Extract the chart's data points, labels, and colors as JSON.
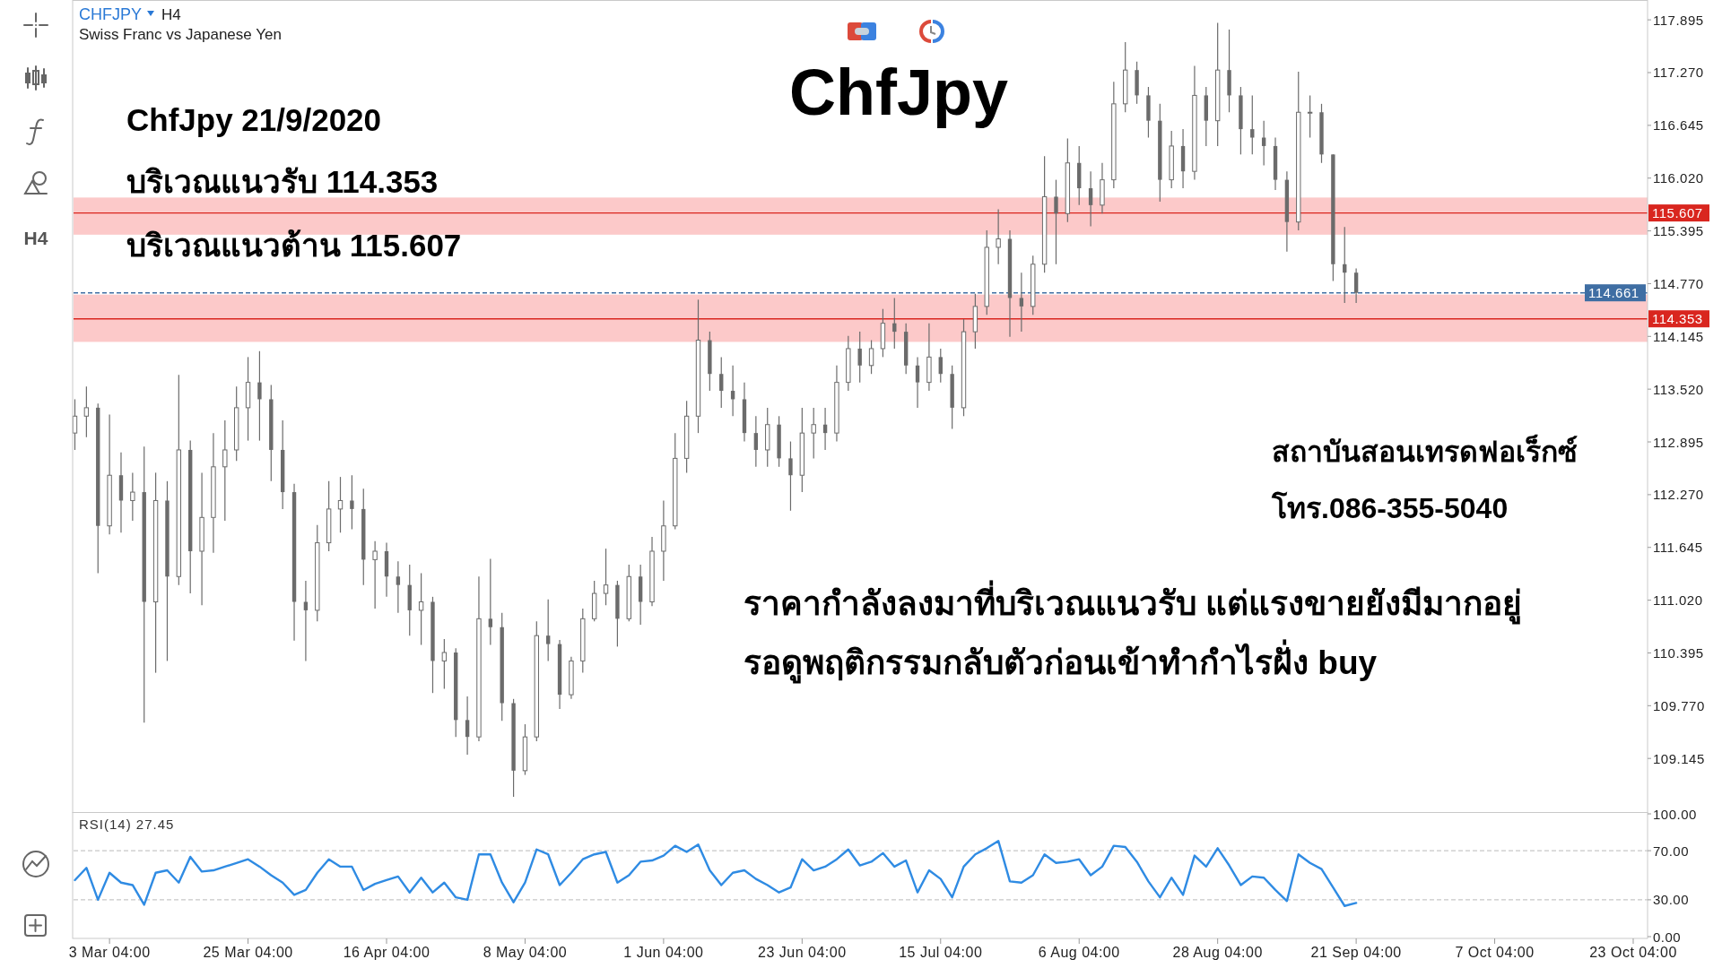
{
  "chart_data": [
    {
      "type": "candlestick",
      "title": "ChfJpy",
      "subtitle": "Swiss Franc vs Japanese Yen",
      "annotations": [
        "CHFJPY",
        "H4",
        "ChfJpy 21/9/2020",
        "บริเวณแนวรับ 114.353",
        "บริเวณแนวต้าน 115.607",
        "สถาบันสอนเทรดฟอเร็กซ์",
        "โทร.086-355-5040",
        "ราคากำลังลงมาที่บริเวณแนวรับ แต่แรงขายยังมีมากอยู่",
        "รอดูพฤติกรรมกลับตัวก่อนเข้าทำกำไรฝั่ง buy",
        "H4"
      ],
      "categories": [
        null,
        null,
        null,
        null,
        null,
        null,
        null,
        null,
        null,
        null,
        null,
        null,
        null,
        null,
        null,
        null,
        null,
        null,
        null,
        null,
        null,
        null,
        null,
        null,
        null,
        null,
        null,
        null,
        null,
        null,
        null,
        null,
        null,
        null,
        null,
        null,
        null,
        null,
        null,
        null,
        null,
        null,
        null,
        null,
        null,
        null,
        null,
        null,
        null,
        null,
        null,
        null,
        null,
        null,
        null,
        null,
        null,
        null,
        null,
        null,
        null,
        null,
        null,
        null,
        null,
        null,
        null,
        null,
        null,
        null,
        null,
        null,
        null,
        null,
        null,
        null,
        null,
        null,
        null,
        null,
        null,
        null,
        null,
        null,
        null,
        null,
        null,
        null,
        null,
        null,
        null,
        null,
        null,
        null,
        null,
        null,
        null,
        null,
        null,
        null,
        null,
        null,
        null,
        null,
        null,
        null,
        null,
        null,
        null,
        null,
        null,
        null,
        null,
        null,
        null,
        null,
        null,
        null,
        null,
        null,
        null,
        null,
        null,
        null,
        null,
        null,
        null,
        null,
        null,
        null,
        null,
        null,
        null,
        null,
        null,
        null
      ],
      "ohlc": [
        [
          113.0,
          113.4,
          112.8,
          113.2
        ],
        [
          113.2,
          113.55,
          112.95,
          113.3
        ],
        [
          113.3,
          113.35,
          111.34,
          111.9
        ],
        [
          111.9,
          113.22,
          111.8,
          112.5
        ],
        [
          112.5,
          112.77,
          111.82,
          112.2
        ],
        [
          112.2,
          112.53,
          111.96,
          112.3
        ],
        [
          112.3,
          112.84,
          109.57,
          111.0
        ],
        [
          111.0,
          112.53,
          110.16,
          112.2
        ],
        [
          112.2,
          112.43,
          110.3,
          111.3
        ],
        [
          111.3,
          113.69,
          111.2,
          112.8
        ],
        [
          112.8,
          112.91,
          111.1,
          111.6
        ],
        [
          111.6,
          112.53,
          110.96,
          112.0
        ],
        [
          112.0,
          113.0,
          111.58,
          112.6
        ],
        [
          112.6,
          113.15,
          111.96,
          112.8
        ],
        [
          112.8,
          113.55,
          112.67,
          113.3
        ],
        [
          113.3,
          113.9,
          112.91,
          113.6
        ],
        [
          113.6,
          113.97,
          112.91,
          113.4
        ],
        [
          113.4,
          113.57,
          112.43,
          112.8
        ],
        [
          112.8,
          113.15,
          112.1,
          112.3
        ],
        [
          112.3,
          112.4,
          110.54,
          111.0
        ],
        [
          111.0,
          111.25,
          110.3,
          110.9
        ],
        [
          110.9,
          111.91,
          110.77,
          111.7
        ],
        [
          111.7,
          112.43,
          111.6,
          112.1
        ],
        [
          112.1,
          112.48,
          111.82,
          112.2
        ],
        [
          112.2,
          112.5,
          111.86,
          112.1
        ],
        [
          112.1,
          112.34,
          111.2,
          111.5
        ],
        [
          111.5,
          111.72,
          110.92,
          111.6
        ],
        [
          111.6,
          111.7,
          111.06,
          111.3
        ],
        [
          111.3,
          111.48,
          110.87,
          111.2
        ],
        [
          111.2,
          111.44,
          110.6,
          110.9
        ],
        [
          110.9,
          111.34,
          110.49,
          111.0
        ],
        [
          111.0,
          111.06,
          109.92,
          110.3
        ],
        [
          110.3,
          110.56,
          109.97,
          110.4
        ],
        [
          110.4,
          110.45,
          109.4,
          109.6
        ],
        [
          109.6,
          109.88,
          109.19,
          109.4
        ],
        [
          109.4,
          111.3,
          109.35,
          110.8
        ],
        [
          110.8,
          111.51,
          110.49,
          110.7
        ],
        [
          110.7,
          110.87,
          109.59,
          109.8
        ],
        [
          109.8,
          109.85,
          108.69,
          109.0
        ],
        [
          109.0,
          109.55,
          108.95,
          109.4
        ],
        [
          109.4,
          110.77,
          109.35,
          110.6
        ],
        [
          110.6,
          111.03,
          110.3,
          110.5
        ],
        [
          110.5,
          110.55,
          109.73,
          109.9
        ],
        [
          109.9,
          110.35,
          109.85,
          110.3
        ],
        [
          110.3,
          110.92,
          110.16,
          110.8
        ],
        [
          110.8,
          111.25,
          110.77,
          111.1
        ],
        [
          111.1,
          111.63,
          110.96,
          111.2
        ],
        [
          111.2,
          111.25,
          110.47,
          110.8
        ],
        [
          110.8,
          111.44,
          110.77,
          111.3
        ],
        [
          111.3,
          111.44,
          110.73,
          111.0
        ],
        [
          111.0,
          111.77,
          110.95,
          111.6
        ],
        [
          111.6,
          112.2,
          111.25,
          111.9
        ],
        [
          111.9,
          113.0,
          111.86,
          112.7
        ],
        [
          112.7,
          113.38,
          112.53,
          113.2
        ],
        [
          113.2,
          114.58,
          113.0,
          114.1
        ],
        [
          114.1,
          114.2,
          113.5,
          113.7
        ],
        [
          113.7,
          113.9,
          113.3,
          113.5
        ],
        [
          113.5,
          113.8,
          113.2,
          113.4
        ],
        [
          113.4,
          113.6,
          112.9,
          113.0
        ],
        [
          113.0,
          113.2,
          112.6,
          112.8
        ],
        [
          112.8,
          113.3,
          112.6,
          113.1
        ],
        [
          113.1,
          113.2,
          112.6,
          112.7
        ],
        [
          112.7,
          112.9,
          112.08,
          112.5
        ],
        [
          112.5,
          113.3,
          112.3,
          113.0
        ],
        [
          113.0,
          113.3,
          112.7,
          113.1
        ],
        [
          113.1,
          113.3,
          112.8,
          113.0
        ],
        [
          113.0,
          113.8,
          112.9,
          113.6
        ],
        [
          113.6,
          114.15,
          113.5,
          114.0
        ],
        [
          114.0,
          114.2,
          113.6,
          113.8
        ],
        [
          113.8,
          114.1,
          113.7,
          114.0
        ],
        [
          114.0,
          114.47,
          113.9,
          114.3
        ],
        [
          114.3,
          114.6,
          114.0,
          114.2
        ],
        [
          114.2,
          114.3,
          113.7,
          113.8
        ],
        [
          113.8,
          113.9,
          113.3,
          113.6
        ],
        [
          113.6,
          114.3,
          113.5,
          113.9
        ],
        [
          113.9,
          114.0,
          113.6,
          113.7
        ],
        [
          113.7,
          113.8,
          113.05,
          113.3
        ],
        [
          113.3,
          114.35,
          113.2,
          114.2
        ],
        [
          114.2,
          114.65,
          114.0,
          114.5
        ],
        [
          114.5,
          115.4,
          114.4,
          115.2
        ],
        [
          115.2,
          115.65,
          115.0,
          115.3
        ],
        [
          115.3,
          115.4,
          114.14,
          114.6
        ],
        [
          114.6,
          114.9,
          114.2,
          114.5
        ],
        [
          114.5,
          115.1,
          114.4,
          115.0
        ],
        [
          115.0,
          116.28,
          114.9,
          115.8
        ],
        [
          115.8,
          116.0,
          115.0,
          115.6
        ],
        [
          115.6,
          116.49,
          115.5,
          116.2
        ],
        [
          116.2,
          116.4,
          115.7,
          115.9
        ],
        [
          115.9,
          116.1,
          115.45,
          115.7
        ],
        [
          115.7,
          116.2,
          115.6,
          116.0
        ],
        [
          116.0,
          117.16,
          115.9,
          116.9
        ],
        [
          116.9,
          117.63,
          116.8,
          117.3
        ],
        [
          117.3,
          117.4,
          116.9,
          117.0
        ],
        [
          117.0,
          117.1,
          116.5,
          116.7
        ],
        [
          116.7,
          116.9,
          115.74,
          116.0
        ],
        [
          116.0,
          116.58,
          115.9,
          116.4
        ],
        [
          116.4,
          116.6,
          115.9,
          116.1
        ],
        [
          116.1,
          117.35,
          116.0,
          117.0
        ],
        [
          117.0,
          117.1,
          116.4,
          116.7
        ],
        [
          116.7,
          117.86,
          116.4,
          117.3
        ],
        [
          117.3,
          117.78,
          116.8,
          117.0
        ],
        [
          117.0,
          117.1,
          116.3,
          116.6
        ],
        [
          116.6,
          117.0,
          116.3,
          116.5
        ],
        [
          116.5,
          116.7,
          116.17,
          116.4
        ],
        [
          116.4,
          116.5,
          115.88,
          116.0
        ],
        [
          116.0,
          116.1,
          115.15,
          115.5
        ],
        [
          115.5,
          117.28,
          115.4,
          116.8
        ],
        [
          116.8,
          117.0,
          116.5,
          116.8
        ],
        [
          116.8,
          116.9,
          116.2,
          116.3
        ],
        [
          116.3,
          116.3,
          114.8,
          115.0
        ],
        [
          115.0,
          115.44,
          114.54,
          114.9
        ],
        [
          114.9,
          114.95,
          114.54,
          114.661
        ],
        null,
        null,
        null,
        null,
        null,
        null,
        null,
        null,
        null,
        null,
        null,
        null,
        null,
        null,
        null,
        null,
        null,
        null,
        null,
        null,
        null,
        null,
        null,
        null
      ],
      "color": "#6b6b6b",
      "ylim": [
        108.51,
        118.13
      ],
      "yticks": [
        109.145,
        {
          "value": 109.77,
          "label": "109.770"
        },
        110.395,
        {
          "value": 111.02,
          "label": "111.020"
        },
        111.645,
        {
          "value": 112.27,
          "label": "112.270"
        },
        112.895,
        {
          "value": 113.52,
          "label": "113.520"
        },
        114.145,
        {
          "value": 114.77,
          "label": "114.770"
        },
        115.395,
        {
          "value": 116.02,
          "label": "116.020"
        },
        116.645,
        {
          "value": 117.27,
          "label": "117.270"
        },
        117.895
      ],
      "bands": [
        {
          "axis": "y",
          "from": 115.35,
          "to": 115.79,
          "color": "#fcc9c9"
        },
        {
          "axis": "y",
          "from": 114.08,
          "to": 114.64,
          "color": "#fcc9c9"
        }
      ],
      "ref_lines": [
        {
          "axis": "y",
          "value": 115.607,
          "label": "115.607",
          "color": "#d9261f"
        },
        {
          "axis": "y",
          "value": 114.353,
          "label": "114.353",
          "color": "#d9261f"
        },
        {
          "axis": "y",
          "value": 114.661,
          "label": "114.661",
          "color": "#3f6ea3",
          "line_style": "dashed"
        }
      ]
    },
    {
      "type": "line",
      "title": "RSI(14) 27.45",
      "categories": [
        null,
        null,
        null,
        "3 Mar 04:00",
        null,
        null,
        null,
        null,
        null,
        null,
        null,
        null,
        null,
        null,
        null,
        "25 Mar 04:00",
        null,
        null,
        null,
        null,
        null,
        null,
        null,
        null,
        null,
        null,
        null,
        "16 Apr 04:00",
        null,
        null,
        null,
        null,
        null,
        null,
        null,
        null,
        null,
        null,
        null,
        "8 May 04:00",
        null,
        null,
        null,
        null,
        null,
        null,
        null,
        null,
        null,
        null,
        null,
        "1 Jun 04:00",
        null,
        null,
        null,
        null,
        null,
        null,
        null,
        null,
        null,
        null,
        null,
        "23 Jun 04:00",
        null,
        null,
        null,
        null,
        null,
        null,
        null,
        null,
        null,
        null,
        null,
        "15 Jul 04:00",
        null,
        null,
        null,
        null,
        null,
        null,
        null,
        null,
        null,
        null,
        null,
        "6 Aug 04:00",
        null,
        null,
        null,
        null,
        null,
        null,
        null,
        null,
        null,
        null,
        null,
        "28 Aug 04:00",
        null,
        null,
        null,
        null,
        null,
        null,
        null,
        null,
        null,
        null,
        null,
        "21 Sep 04:00",
        null,
        null,
        null,
        null,
        null,
        null,
        null,
        null,
        null,
        null,
        null,
        "7 Oct 04:00",
        null,
        null,
        null,
        null,
        null,
        null,
        null,
        null,
        null,
        null,
        null,
        "23 Oct 04:00"
      ],
      "values": [
        46,
        56,
        30,
        52,
        44,
        42,
        26,
        52,
        54,
        44,
        65,
        53,
        54,
        57,
        60,
        63,
        57,
        50,
        44,
        34,
        38,
        52,
        63,
        57,
        57,
        38,
        43,
        46,
        49,
        36,
        48,
        36,
        44,
        32,
        30,
        67,
        67,
        44,
        28,
        44,
        71,
        67,
        42,
        52,
        63,
        67,
        69,
        44,
        50,
        61,
        62,
        66,
        74,
        69,
        75,
        54,
        42,
        52,
        54,
        47,
        42,
        36,
        40,
        63,
        54,
        57,
        63,
        71,
        58,
        61,
        68,
        57,
        62,
        36,
        54,
        47,
        32,
        57,
        67,
        72,
        78,
        45,
        44,
        50,
        67,
        60,
        61,
        63,
        50,
        57,
        74,
        73,
        61,
        45,
        32,
        48,
        34,
        66,
        57,
        72,
        58,
        42,
        49,
        48,
        38,
        29,
        67,
        60,
        55,
        40,
        25,
        27.45,
        null,
        null,
        null,
        null,
        null,
        null,
        null,
        null,
        null,
        null,
        null,
        null,
        null,
        null,
        null,
        null,
        null,
        null,
        null,
        null,
        null,
        null,
        null,
        null
      ],
      "color": "#2f8be3",
      "ylim": [
        0,
        100
      ],
      "yticks": [
        {
          "value": 0,
          "label": "0.00"
        },
        {
          "value": 30,
          "label": "30.00"
        },
        {
          "value": 70,
          "label": "70.00"
        },
        {
          "value": 100,
          "label": "100.00"
        }
      ],
      "ref_lines": [
        {
          "axis": "y",
          "value": 70,
          "color": "#c8c8c8",
          "line_style": "dashed"
        },
        {
          "axis": "y",
          "value": 30,
          "color": "#c8c8c8",
          "line_style": "dashed"
        }
      ]
    }
  ]
}
